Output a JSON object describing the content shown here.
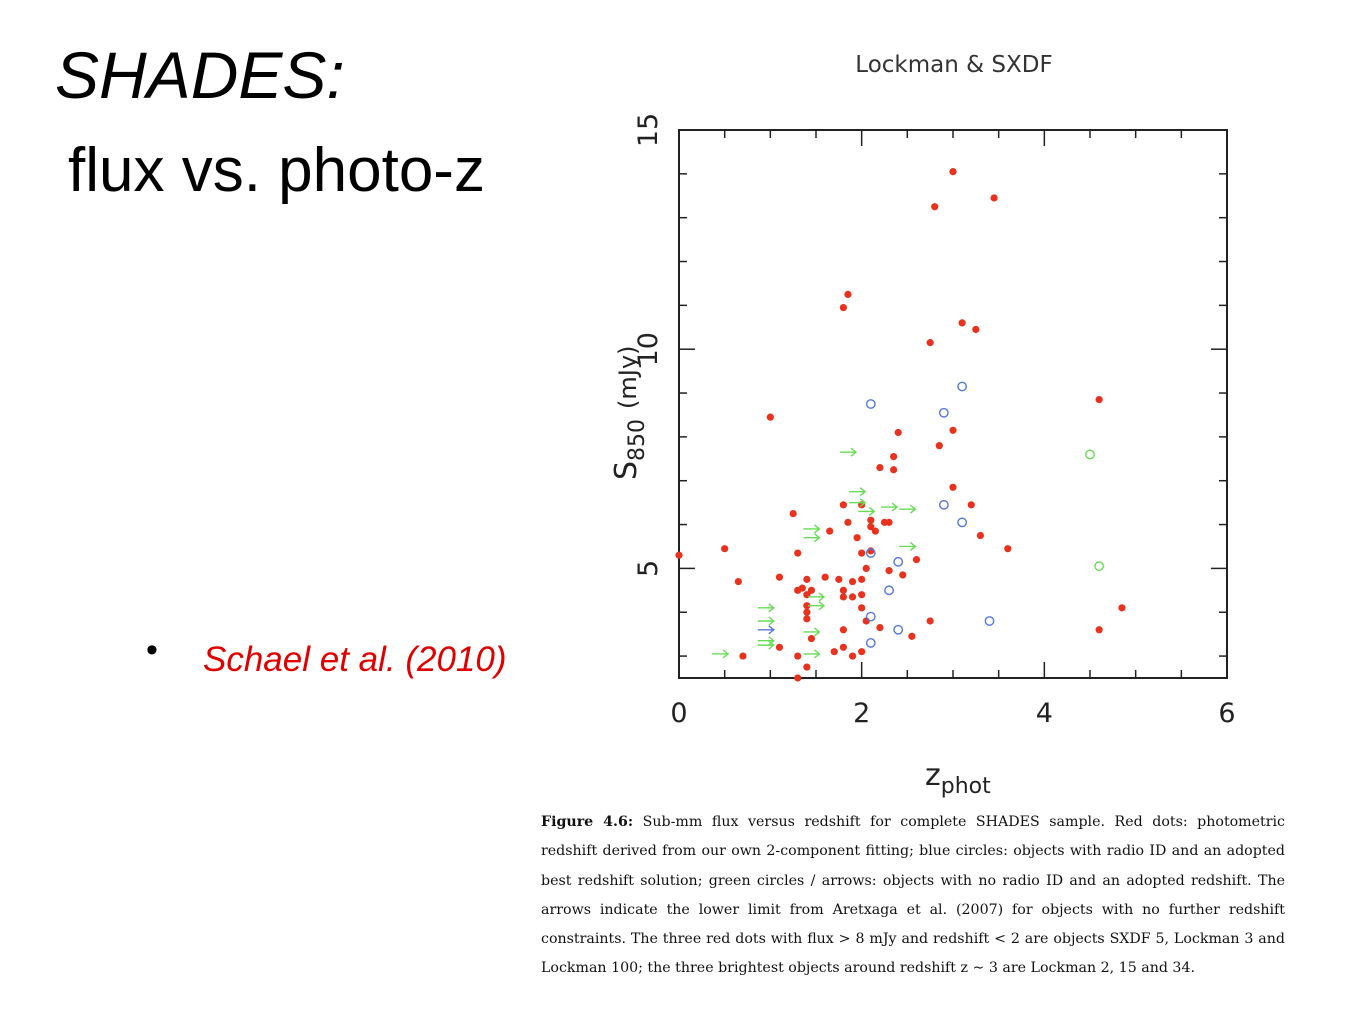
{
  "slide": {
    "title_line1": "SHADES:",
    "title_line2": "flux vs. photo-z",
    "bullet_symbol": "•",
    "reference": "Schael et al. (2010)",
    "reference_color": "#e00000"
  },
  "caption": {
    "label": "Figure 4.6:",
    "text": "Sub-mm flux versus redshift for complete SHADES sample. Red dots: photometric redshift derived from our own 2-component fitting; blue circles: objects with radio ID and an adopted best redshift solution; green circles / arrows: objects with no radio ID and an adopted redshift. The arrows indicate the lower limit from Aretxaga et al. (2007) for objects with no further redshift constraints. The three red dots with flux > 8 mJy and redshift < 2 are objects SXDF 5, Lockman 3 and Lockman 100; the three brightest objects around redshift z ∼ 3 are Lockman 2, 15 and 34."
  },
  "chart_data": {
    "type": "scatter",
    "title": "Lockman & SXDF",
    "xlabel": "z",
    "xlabel_sub": "phot",
    "ylabel": "S",
    "ylabel_sub": "850",
    "ylabel_unit": "(mJy)",
    "xlim": [
      0,
      6
    ],
    "ylim": [
      2.5,
      15
    ],
    "x_ticks": [
      0,
      2,
      4,
      6
    ],
    "y_ticks": [
      5,
      10,
      15
    ],
    "grid": false,
    "colors": {
      "red": "#e8321e",
      "blue": "#5577e0",
      "green": "#66dd55"
    },
    "series": [
      {
        "marker": "dot",
        "color": "#e8321e",
        "points": [
          [
            0.0,
            5.3
          ],
          [
            0.5,
            5.45
          ],
          [
            0.65,
            4.7
          ],
          [
            0.7,
            3.0
          ],
          [
            1.0,
            8.45
          ],
          [
            1.1,
            4.8
          ],
          [
            1.1,
            3.2
          ],
          [
            1.25,
            6.25
          ],
          [
            1.3,
            5.35
          ],
          [
            1.3,
            4.5
          ],
          [
            1.3,
            3.0
          ],
          [
            1.3,
            2.5
          ],
          [
            1.35,
            4.55
          ],
          [
            1.4,
            4.75
          ],
          [
            1.4,
            4.4
          ],
          [
            1.4,
            4.15
          ],
          [
            1.4,
            4.0
          ],
          [
            1.4,
            3.85
          ],
          [
            1.45,
            4.5
          ],
          [
            1.45,
            3.4
          ],
          [
            1.4,
            2.75
          ],
          [
            1.6,
            4.8
          ],
          [
            1.65,
            5.85
          ],
          [
            1.7,
            3.1
          ],
          [
            1.75,
            4.75
          ],
          [
            1.8,
            10.95
          ],
          [
            1.85,
            11.25
          ],
          [
            1.8,
            6.45
          ],
          [
            1.8,
            4.5
          ],
          [
            1.8,
            4.35
          ],
          [
            1.8,
            3.6
          ],
          [
            1.8,
            3.2
          ],
          [
            1.9,
            3.0
          ],
          [
            1.9,
            4.7
          ],
          [
            1.9,
            4.35
          ],
          [
            1.85,
            6.05
          ],
          [
            1.95,
            5.7
          ],
          [
            2.0,
            6.45
          ],
          [
            2.0,
            5.35
          ],
          [
            2.0,
            4.75
          ],
          [
            2.0,
            4.4
          ],
          [
            2.0,
            4.1
          ],
          [
            2.0,
            3.1
          ],
          [
            2.05,
            5.0
          ],
          [
            2.05,
            3.8
          ],
          [
            2.1,
            6.1
          ],
          [
            2.1,
            5.95
          ],
          [
            2.15,
            5.85
          ],
          [
            2.1,
            5.4
          ],
          [
            2.2,
            7.3
          ],
          [
            2.25,
            6.05
          ],
          [
            2.3,
            6.05
          ],
          [
            2.3,
            4.95
          ],
          [
            2.35,
            7.55
          ],
          [
            2.35,
            7.25
          ],
          [
            2.4,
            8.1
          ],
          [
            2.2,
            3.65
          ],
          [
            2.45,
            4.85
          ],
          [
            2.55,
            3.45
          ],
          [
            2.6,
            5.2
          ],
          [
            2.75,
            3.8
          ],
          [
            2.75,
            10.15
          ],
          [
            2.8,
            13.25
          ],
          [
            2.85,
            7.8
          ],
          [
            3.0,
            14.05
          ],
          [
            3.0,
            8.15
          ],
          [
            3.0,
            6.85
          ],
          [
            3.1,
            10.6
          ],
          [
            3.25,
            10.45
          ],
          [
            3.2,
            6.45
          ],
          [
            3.3,
            5.75
          ],
          [
            3.45,
            13.45
          ],
          [
            3.6,
            5.45
          ],
          [
            4.6,
            8.85
          ],
          [
            4.6,
            3.6
          ],
          [
            4.85,
            4.1
          ]
        ]
      },
      {
        "marker": "circle",
        "color": "#5577e0",
        "points": [
          [
            2.1,
            8.75
          ],
          [
            2.1,
            5.35
          ],
          [
            2.1,
            3.9
          ],
          [
            2.1,
            3.3
          ],
          [
            2.3,
            4.5
          ],
          [
            2.4,
            5.15
          ],
          [
            2.4,
            3.6
          ],
          [
            2.9,
            8.55
          ],
          [
            2.9,
            6.45
          ],
          [
            3.1,
            9.15
          ],
          [
            3.1,
            6.05
          ],
          [
            3.4,
            3.8
          ]
        ]
      },
      {
        "marker": "circle",
        "color": "#66dd55",
        "points": [
          [
            4.5,
            7.6
          ],
          [
            4.6,
            5.05
          ]
        ]
      },
      {
        "marker": "arrow",
        "color": "#66dd55",
        "points": [
          [
            0.45,
            3.05
          ],
          [
            0.95,
            4.1
          ],
          [
            0.95,
            3.8
          ],
          [
            0.95,
            3.35
          ],
          [
            0.95,
            3.25
          ],
          [
            1.45,
            5.9
          ],
          [
            1.45,
            5.7
          ],
          [
            1.45,
            3.55
          ],
          [
            1.45,
            3.05
          ],
          [
            1.5,
            4.35
          ],
          [
            1.5,
            4.15
          ],
          [
            1.85,
            7.65
          ],
          [
            1.95,
            6.75
          ],
          [
            1.95,
            6.5
          ],
          [
            2.05,
            6.3
          ],
          [
            2.3,
            6.4
          ],
          [
            2.5,
            6.35
          ],
          [
            2.5,
            5.5
          ]
        ]
      },
      {
        "marker": "arrow",
        "color": "#5577e0",
        "points": [
          [
            0.95,
            3.6
          ]
        ]
      }
    ]
  }
}
